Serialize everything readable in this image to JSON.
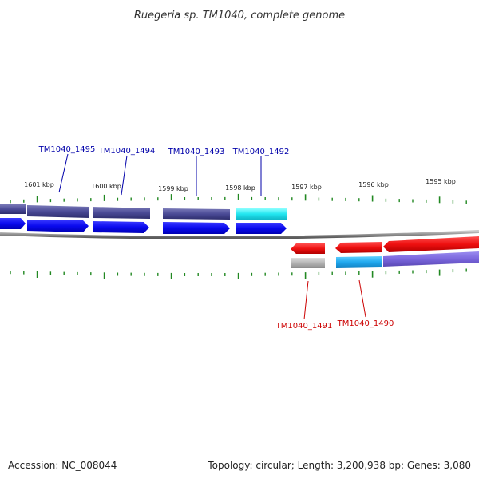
{
  "title": "Ruegeria sp. TM1040, complete genome",
  "footer": {
    "accession": "Accession: NC_008044",
    "summary": "Topology: circular; Length: 3,200,938 bp; Genes: 3,080"
  },
  "colors": {
    "forward_label": "#0000aa",
    "reverse_label": "#cc0000",
    "tick": "#228822",
    "backbone": "#888888"
  },
  "ticks": [
    "1601 kbp",
    "1600 kbp",
    "1599 kbp",
    "1598 kbp",
    "1597 kbp",
    "1596 kbp",
    "1595 kbp"
  ],
  "forward_genes": [
    "TM1040_1495",
    "TM1040_1494",
    "TM1040_1493",
    "TM1040_1492"
  ],
  "reverse_genes": [
    "TM1040_1491",
    "TM1040_1490"
  ]
}
